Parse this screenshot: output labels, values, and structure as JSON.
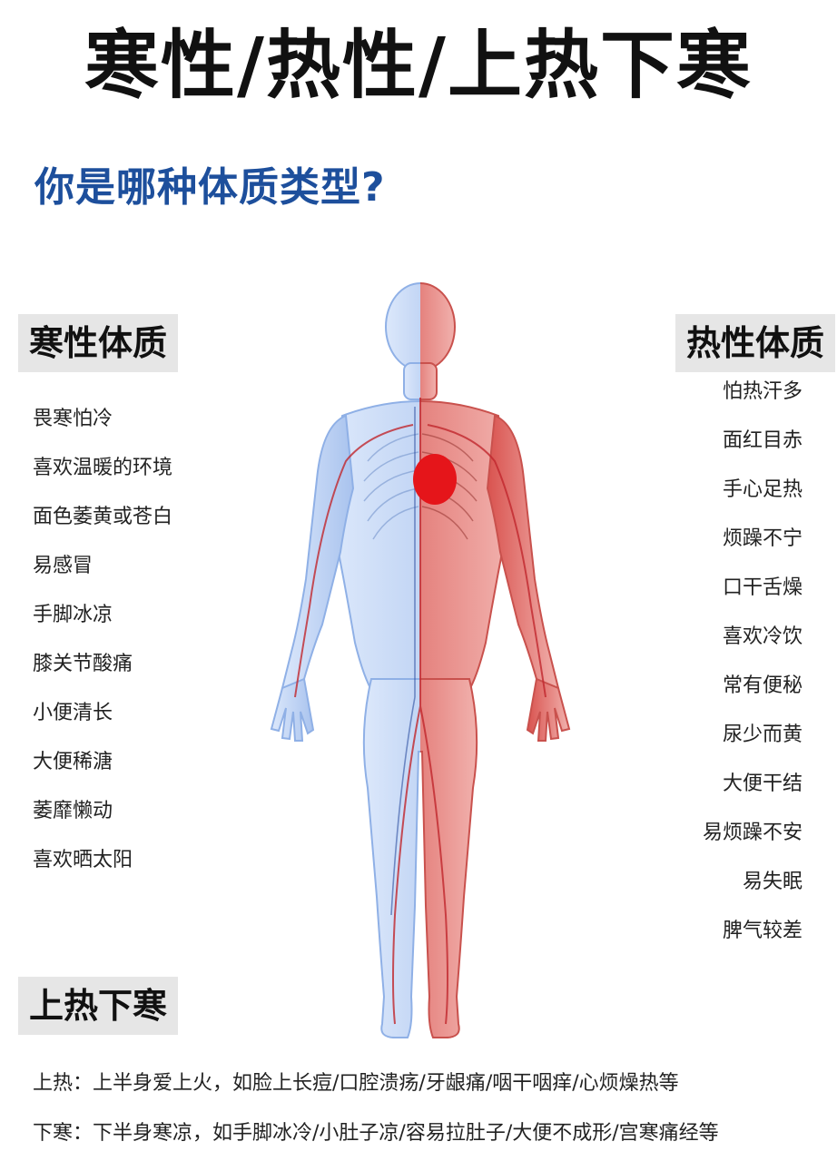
{
  "title": "寒性/热性/上热下寒",
  "subtitle": "你是哪种体质类型?",
  "cold": {
    "title": "寒性体质",
    "items": [
      "畏寒怕冷",
      "喜欢温暖的环境",
      "面色萎黄或苍白",
      "易感冒",
      "手脚冰凉",
      "膝关节酸痛",
      "小便清长",
      "大便稀溏",
      "萎靡懒动",
      "喜欢晒太阳"
    ]
  },
  "hot": {
    "title": "热性体质",
    "items": [
      "怕热汗多",
      "面红目赤",
      "手心足热",
      "烦躁不宁",
      "口干舌燥",
      "喜欢冷饮",
      "常有便秘",
      "尿少而黄",
      "大便干结",
      "易烦躁不安",
      "易失眠",
      "脾气较差"
    ]
  },
  "bottom": {
    "title": "上热下寒",
    "line1": "上热：上半身爱上火，如脸上长痘/口腔溃疡/牙龈痛/咽干咽痒/心烦燥热等",
    "line2": "下寒：下半身寒凉，如手脚冰冷/小肚子凉/容易拉肚子/大便不成形/宫寒痛经等"
  },
  "colors": {
    "cold": "#aac6f0",
    "hot": "#e98a86",
    "heart": "#e5151a",
    "subtitle": "#1d4f9c"
  }
}
